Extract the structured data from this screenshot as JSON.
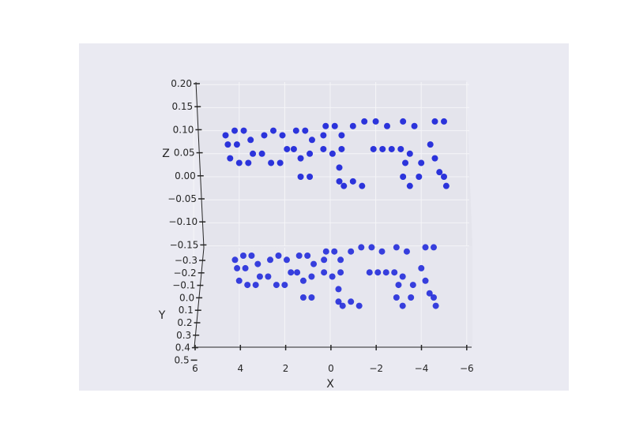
{
  "chart_data": {
    "type": "scatter",
    "projection": "3d",
    "title": "",
    "xlabel": "X",
    "ylabel": "Y",
    "zlabel": "Z",
    "x_ticks": [
      "6",
      "4",
      "2",
      "0",
      "−2",
      "−4",
      "−6"
    ],
    "y_ticks": [
      "−0.3",
      "−0.2",
      "−0.1",
      "0.0",
      "0.1",
      "0.2",
      "0.3",
      "0.4",
      "0.5"
    ],
    "z_ticks": [
      "0.20",
      "0.15",
      "0.10",
      "0.05",
      "0.00",
      "−0.05",
      "−0.10",
      "−0.15"
    ],
    "xlim": [
      6,
      -6
    ],
    "ylim": [
      -0.35,
      0.5
    ],
    "zlim": [
      -0.18,
      0.2
    ],
    "marker_color": "#0a14d8",
    "pane_color": "#eaeaf2",
    "grid": true,
    "series": [
      {
        "values": [
          {
            "x": 4.6,
            "y": 0,
            "z": 0.09
          },
          {
            "x": 4.2,
            "y": 0,
            "z": 0.1
          },
          {
            "x": 3.8,
            "y": 0,
            "z": 0.1
          },
          {
            "x": 3.5,
            "y": 0,
            "z": 0.08
          },
          {
            "x": 3.4,
            "y": 0,
            "z": 0.05
          },
          {
            "x": 3.6,
            "y": 0,
            "z": 0.03
          },
          {
            "x": 4.0,
            "y": 0,
            "z": 0.03
          },
          {
            "x": 4.4,
            "y": 0,
            "z": 0.04
          },
          {
            "x": 4.5,
            "y": 0,
            "z": 0.07
          },
          {
            "x": 4.1,
            "y": 0,
            "z": 0.07
          },
          {
            "x": 2.9,
            "y": 0,
            "z": 0.09
          },
          {
            "x": 2.5,
            "y": 0,
            "z": 0.1
          },
          {
            "x": 2.1,
            "y": 0,
            "z": 0.09
          },
          {
            "x": 1.9,
            "y": 0,
            "z": 0.06
          },
          {
            "x": 2.2,
            "y": 0,
            "z": 0.03
          },
          {
            "x": 2.6,
            "y": 0,
            "z": 0.03
          },
          {
            "x": 3.0,
            "y": 0,
            "z": 0.05
          },
          {
            "x": 1.5,
            "y": 0,
            "z": 0.1
          },
          {
            "x": 1.1,
            "y": 0,
            "z": 0.1
          },
          {
            "x": 0.8,
            "y": 0,
            "z": 0.08
          },
          {
            "x": 0.9,
            "y": 0,
            "z": 0.05
          },
          {
            "x": 1.3,
            "y": 0,
            "z": 0.04
          },
          {
            "x": 1.6,
            "y": 0,
            "z": 0.06
          },
          {
            "x": 0.2,
            "y": 0,
            "z": 0.11
          },
          {
            "x": -0.2,
            "y": 0,
            "z": 0.11
          },
          {
            "x": -0.5,
            "y": 0,
            "z": 0.09
          },
          {
            "x": -0.5,
            "y": 0,
            "z": 0.06
          },
          {
            "x": -0.1,
            "y": 0,
            "z": 0.05
          },
          {
            "x": 0.3,
            "y": 0,
            "z": 0.06
          },
          {
            "x": 0.3,
            "y": 0,
            "z": 0.09
          },
          {
            "x": -1.0,
            "y": 0,
            "z": 0.11
          },
          {
            "x": -1.5,
            "y": 0,
            "z": 0.12
          },
          {
            "x": -2.0,
            "y": 0,
            "z": 0.12
          },
          {
            "x": -2.5,
            "y": 0,
            "z": 0.11
          },
          {
            "x": -3.2,
            "y": 0,
            "z": 0.12
          },
          {
            "x": -3.7,
            "y": 0,
            "z": 0.11
          },
          {
            "x": -4.6,
            "y": 0,
            "z": 0.12
          },
          {
            "x": -5.0,
            "y": 0,
            "z": 0.12
          },
          {
            "x": -1.9,
            "y": 0,
            "z": 0.06
          },
          {
            "x": -2.3,
            "y": 0,
            "z": 0.06
          },
          {
            "x": -2.7,
            "y": 0,
            "z": 0.06
          },
          {
            "x": -3.1,
            "y": 0,
            "z": 0.06
          },
          {
            "x": -3.5,
            "y": 0,
            "z": 0.05
          },
          {
            "x": -4.4,
            "y": 0,
            "z": 0.07
          },
          {
            "x": -4.6,
            "y": 0,
            "z": 0.04
          },
          {
            "x": -4.8,
            "y": 0,
            "z": 0.01
          },
          {
            "x": 1.3,
            "y": 0,
            "z": 0.0
          },
          {
            "x": 0.9,
            "y": 0,
            "z": 0.0
          },
          {
            "x": -0.4,
            "y": 0,
            "z": 0.02
          },
          {
            "x": -0.4,
            "y": 0,
            "z": -0.01
          },
          {
            "x": -0.6,
            "y": 0,
            "z": -0.02
          },
          {
            "x": -1.0,
            "y": 0,
            "z": -0.01
          },
          {
            "x": -1.4,
            "y": 0,
            "z": -0.02
          },
          {
            "x": -3.3,
            "y": 0,
            "z": 0.03
          },
          {
            "x": -3.2,
            "y": 0,
            "z": 0.0
          },
          {
            "x": -3.5,
            "y": 0,
            "z": -0.02
          },
          {
            "x": -3.9,
            "y": 0,
            "z": 0.0
          },
          {
            "x": -4.0,
            "y": 0,
            "z": 0.03
          },
          {
            "x": -5.0,
            "y": 0,
            "z": 0.0
          },
          {
            "x": -5.1,
            "y": 0,
            "z": -0.02
          }
        ]
      }
    ]
  }
}
